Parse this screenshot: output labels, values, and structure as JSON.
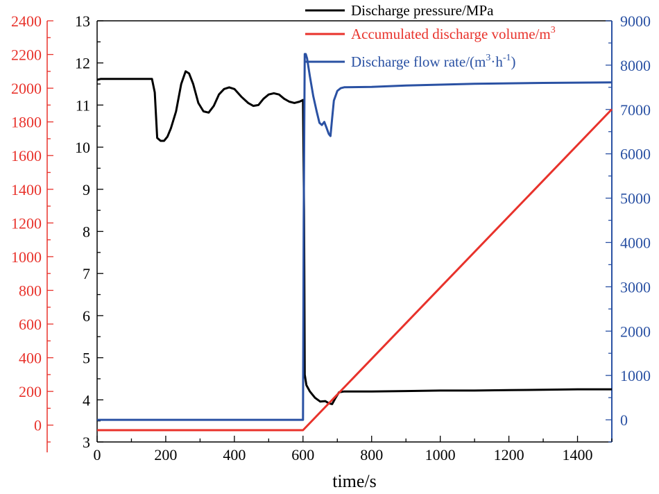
{
  "chart_data": {
    "type": "line",
    "title": "",
    "xlabel": "time/s",
    "xlim": [
      0,
      1500
    ],
    "x_ticks": [
      0,
      200,
      400,
      600,
      800,
      1000,
      1200,
      1400
    ],
    "axes": {
      "pressure": {
        "label": "Discharge pressure/MPa",
        "ylim": [
          3,
          13
        ],
        "ticks": [
          3,
          4,
          5,
          6,
          7,
          8,
          9,
          10,
          11,
          12,
          13
        ],
        "color": "#000000"
      },
      "volume": {
        "label": "Accumulated discharge volume/m3",
        "ylim": [
          -100,
          2400
        ],
        "ticks": [
          0,
          200,
          400,
          600,
          800,
          1000,
          1200,
          1400,
          1600,
          1800,
          2000,
          2200,
          2400
        ],
        "color": "#e8322b"
      },
      "flow": {
        "label": "Discharge flow rate/(m3·h-1)",
        "ylim": [
          -500,
          9000
        ],
        "ticks": [
          0,
          1000,
          2000,
          3000,
          4000,
          5000,
          6000,
          7000,
          8000,
          9000
        ],
        "color": "#2a51a3"
      }
    },
    "legend": {
      "position": "top-right",
      "items": [
        {
          "key": "pressure",
          "text": "Discharge pressure/MPa",
          "sup": "",
          "tail": ""
        },
        {
          "key": "volume",
          "text": "Accumulated discharge volume/m",
          "sup": "3",
          "tail": ""
        },
        {
          "key": "flow",
          "text": "Discharge flow rate/(m",
          "sup": "3",
          "mid": "·h",
          "sup2": "-1",
          "tail": ")"
        }
      ]
    },
    "series": [
      {
        "name": "Discharge pressure/MPa",
        "axis": "pressure",
        "color": "#000000",
        "x": [
          0,
          10,
          60,
          120,
          160,
          168,
          175,
          185,
          195,
          205,
          215,
          230,
          245,
          258,
          268,
          280,
          295,
          310,
          325,
          340,
          355,
          370,
          385,
          400,
          420,
          440,
          455,
          470,
          485,
          500,
          515,
          530,
          545,
          560,
          575,
          590,
          600,
          603,
          605,
          610,
          620,
          635,
          650,
          665,
          675,
          685,
          695,
          705,
          720,
          800,
          900,
          1000,
          1100,
          1200,
          1300,
          1400,
          1500
        ],
        "y": [
          11.6,
          11.62,
          11.62,
          11.62,
          11.62,
          11.3,
          10.22,
          10.15,
          10.15,
          10.25,
          10.45,
          10.85,
          11.5,
          11.8,
          11.75,
          11.5,
          11.05,
          10.85,
          10.82,
          10.98,
          11.25,
          11.38,
          11.42,
          11.38,
          11.2,
          11.05,
          10.98,
          11.0,
          11.15,
          11.25,
          11.28,
          11.25,
          11.15,
          11.08,
          11.05,
          11.08,
          11.12,
          8.5,
          4.6,
          4.35,
          4.2,
          4.05,
          3.96,
          3.97,
          3.92,
          3.9,
          4.05,
          4.18,
          4.2,
          4.2,
          4.21,
          4.22,
          4.22,
          4.23,
          4.24,
          4.25,
          4.25
        ]
      },
      {
        "name": "Accumulated discharge volume/m3",
        "axis": "volume",
        "color": "#e8322b",
        "x": [
          0,
          600,
          1500
        ],
        "y": [
          -30,
          -30,
          1875
        ]
      },
      {
        "name": "Discharge flow rate/(m3·h-1)",
        "axis": "flow",
        "color": "#2a51a3",
        "x": [
          0,
          590,
          600,
          602,
          605,
          608,
          612,
          620,
          630,
          640,
          648,
          655,
          662,
          668,
          675,
          680,
          685,
          690,
          700,
          710,
          720,
          800,
          900,
          1000,
          1100,
          1200,
          1300,
          1400,
          1500
        ],
        "y": [
          0,
          0,
          0,
          4500,
          8250,
          8250,
          8150,
          7750,
          7300,
          6950,
          6700,
          6650,
          6720,
          6600,
          6450,
          6400,
          6800,
          7200,
          7420,
          7480,
          7500,
          7510,
          7540,
          7560,
          7580,
          7590,
          7600,
          7605,
          7610
        ]
      }
    ]
  }
}
